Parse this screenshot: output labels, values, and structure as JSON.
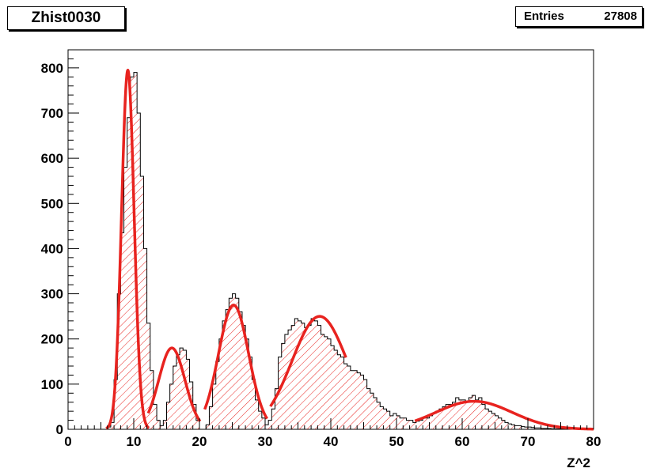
{
  "header": {
    "title": "Zhist0030",
    "stats_label": "Entries",
    "stats_value": "27808"
  },
  "chart_data": {
    "type": "bar",
    "title": "Zhist0030",
    "xlabel": "Z^2",
    "ylabel": "",
    "xlim": [
      0,
      80
    ],
    "ylim": [
      0,
      840
    ],
    "x_ticks": [
      0,
      10,
      20,
      30,
      40,
      50,
      60,
      70,
      80
    ],
    "y_ticks": [
      0,
      100,
      200,
      300,
      400,
      500,
      600,
      700,
      800
    ],
    "x_tick_labels": [
      "0",
      "10",
      "20",
      "30",
      "40",
      "50",
      "60",
      "70",
      "80"
    ],
    "y_tick_labels": [
      "0",
      "100",
      "200",
      "300",
      "400",
      "500",
      "600",
      "700",
      "800"
    ],
    "entries": 27808,
    "bin_width": 0.5,
    "histogram": {
      "x_start": 0,
      "values": [
        0,
        0,
        0,
        0,
        0,
        0,
        0,
        0,
        0,
        0,
        0,
        0,
        5,
        15,
        110,
        300,
        435,
        580,
        690,
        780,
        790,
        700,
        560,
        400,
        235,
        130,
        55,
        20,
        8,
        20,
        60,
        100,
        140,
        165,
        180,
        175,
        155,
        105,
        55,
        20,
        0,
        0,
        10,
        50,
        100,
        150,
        200,
        240,
        265,
        290,
        300,
        290,
        260,
        230,
        200,
        160,
        110,
        65,
        40,
        25,
        10,
        20,
        45,
        90,
        160,
        190,
        210,
        220,
        230,
        245,
        240,
        235,
        225,
        230,
        245,
        240,
        230,
        210,
        205,
        200,
        185,
        175,
        165,
        160,
        145,
        140,
        130,
        130,
        125,
        120,
        110,
        90,
        80,
        70,
        60,
        50,
        45,
        40,
        30,
        35,
        30,
        25,
        25,
        20,
        20,
        15,
        18,
        20,
        25,
        25,
        30,
        35,
        40,
        45,
        50,
        55,
        55,
        60,
        70,
        65,
        65,
        60,
        70,
        75,
        65,
        70,
        55,
        45,
        40,
        35,
        30,
        25,
        20,
        15,
        12,
        10,
        8,
        8,
        6,
        5,
        5,
        4,
        3,
        3,
        2,
        2,
        2,
        1,
        1,
        1,
        1,
        1,
        0,
        0,
        0,
        0
      ]
    },
    "fits": [
      {
        "A": 795,
        "mean": 9.1,
        "sigma": 0.95,
        "range": [
          5.8,
          12.3
        ]
      },
      {
        "A": 180,
        "mean": 15.8,
        "sigma": 2.0,
        "range": [
          12.2,
          20.1
        ]
      },
      {
        "A": 275,
        "mean": 25.2,
        "sigma": 2.3,
        "range": [
          20.8,
          30.3
        ]
      },
      {
        "A": 250,
        "mean": 38.3,
        "sigma": 4.2,
        "range": [
          30.8,
          42.3
        ]
      },
      {
        "A": 62,
        "mean": 61.8,
        "sigma": 5.8,
        "range": [
          52.8,
          80.0
        ]
      }
    ],
    "colors": {
      "fill": "#e8231f",
      "fit_line": "#e8231f",
      "outline": "#000000"
    },
    "grid": false,
    "legend": "none"
  }
}
